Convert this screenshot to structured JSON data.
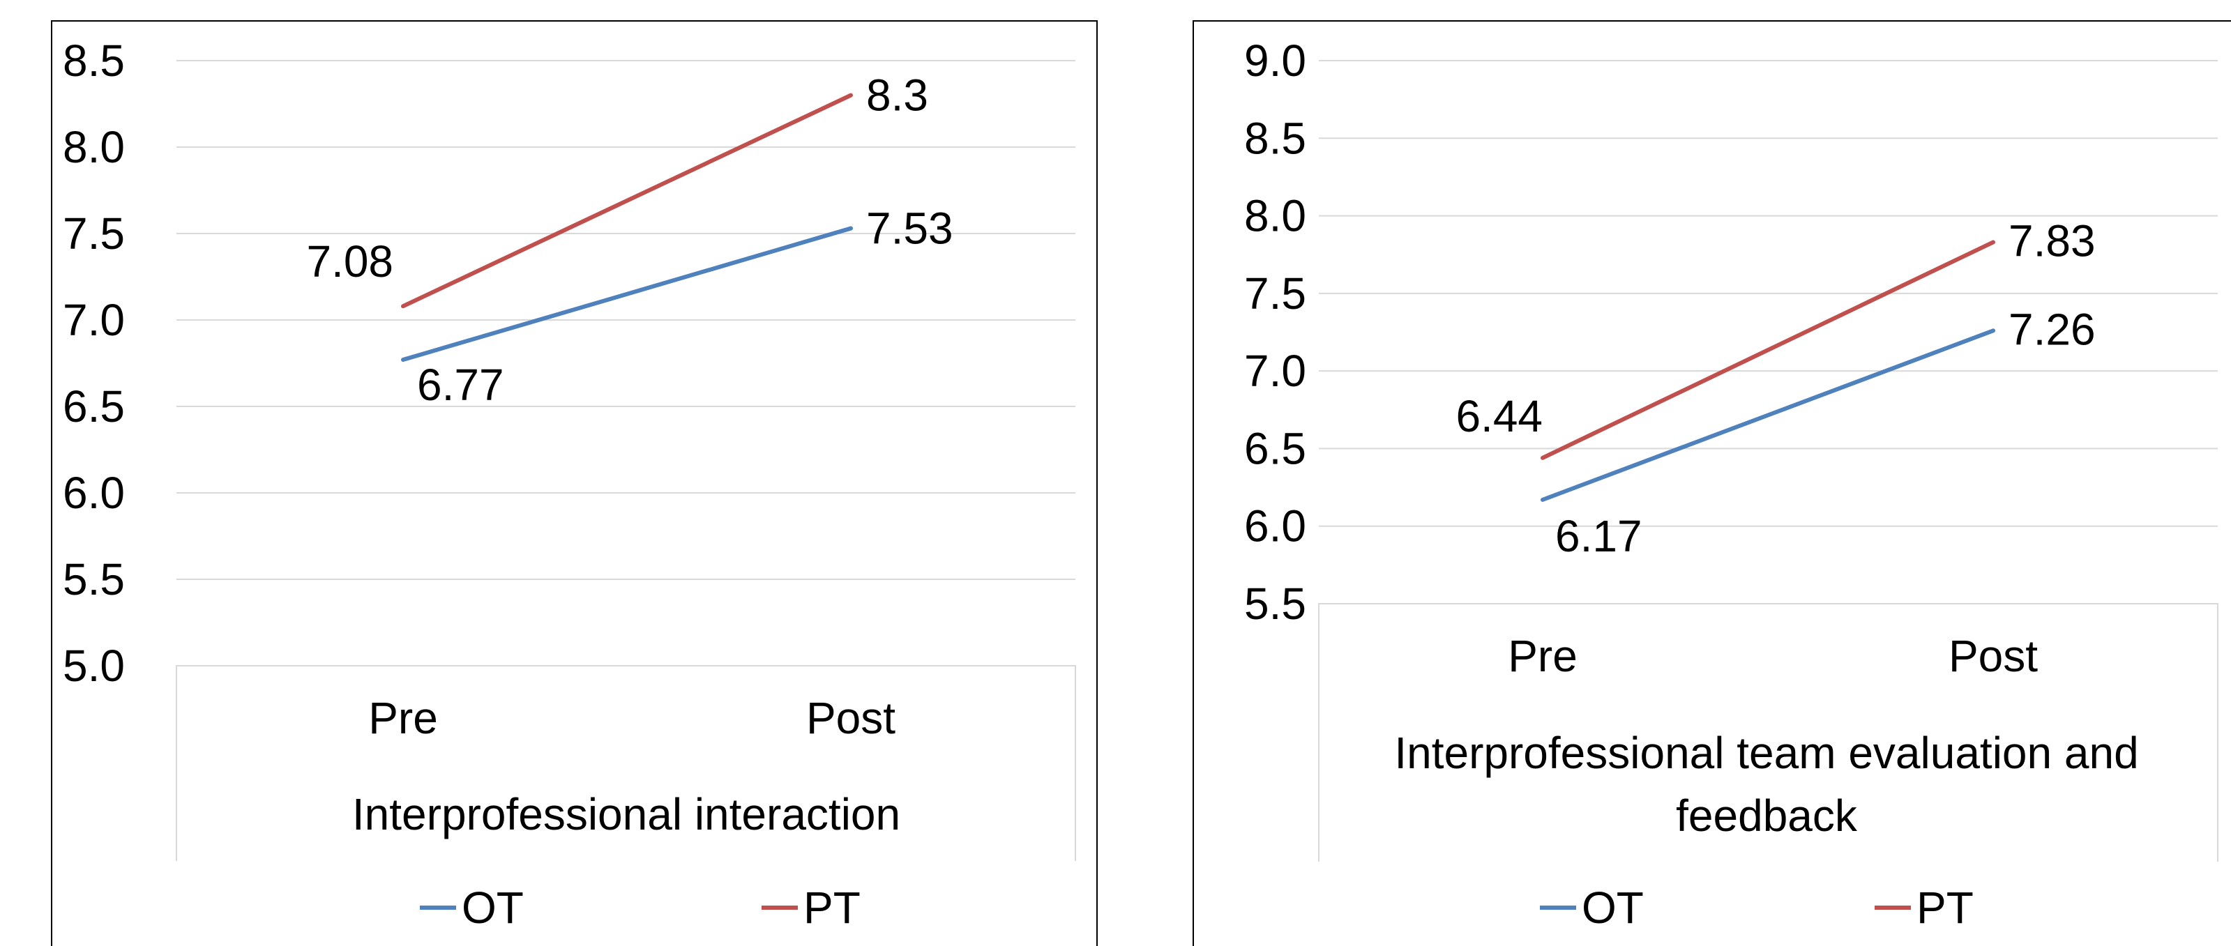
{
  "colors": {
    "OT": "#4F81BD",
    "PT": "#C0504D",
    "grid": "#D9D9D9",
    "border": "#000000",
    "inner_border": "#D9D9D9"
  },
  "chart_data": [
    {
      "type": "line",
      "categories": [
        "Pre",
        "Post"
      ],
      "series": [
        {
          "name": "OT",
          "values": [
            6.77,
            7.53
          ],
          "labels": [
            "6.77",
            "7.53"
          ]
        },
        {
          "name": "PT",
          "values": [
            7.08,
            8.3
          ],
          "labels": [
            "7.08",
            "8.3"
          ]
        }
      ],
      "xlabel": "Interprofessional interaction",
      "ylabel": "",
      "ylim": [
        5.0,
        8.5
      ],
      "yticks": [
        "8.5",
        "8.0",
        "7.5",
        "7.0",
        "6.5",
        "6.0",
        "5.5",
        "5.0"
      ],
      "grid": true,
      "legend": "bottom"
    },
    {
      "type": "line",
      "categories": [
        "Pre",
        "Post"
      ],
      "series": [
        {
          "name": "OT",
          "values": [
            6.17,
            7.26
          ],
          "labels": [
            "6.17",
            "7.26"
          ]
        },
        {
          "name": "PT",
          "values": [
            6.44,
            7.83
          ],
          "labels": [
            "6.44",
            "7.83"
          ]
        }
      ],
      "xlabel": "Interprofessional team evaluation and feedback",
      "xlabel_lines": [
        "Interprofessional team evaluation and",
        "feedback"
      ],
      "ylabel": "",
      "ylim": [
        5.5,
        9.0
      ],
      "yticks": [
        "9.0",
        "8.5",
        "8.0",
        "7.5",
        "7.0",
        "6.5",
        "6.0",
        "5.5"
      ],
      "grid": true,
      "legend": "bottom"
    }
  ]
}
